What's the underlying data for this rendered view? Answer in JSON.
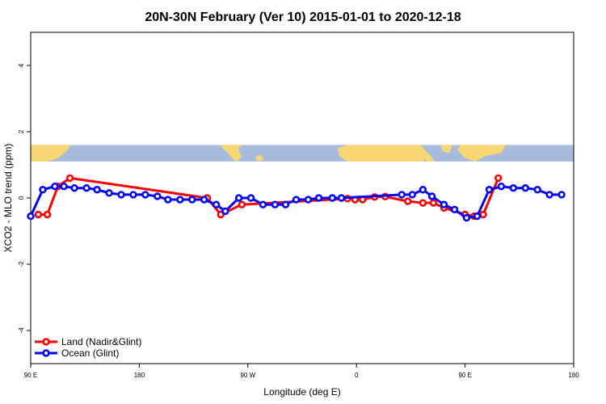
{
  "chart_data": {
    "type": "line",
    "title": "20N-30N February (Ver 10)   2015-01-01 to 2020-12-18",
    "xlabel": "Longitude (deg E)",
    "ylabel": "XCO2 - MLO trend (ppm)",
    "xlim": [
      90,
      450
    ],
    "ylim": [
      -5,
      5
    ],
    "x_ticks": [
      {
        "value": 90,
        "label": "90 E"
      },
      {
        "value": 162,
        "label": "180"
      },
      {
        "value": 234,
        "label": "90 W"
      },
      {
        "value": 306,
        "label": "0"
      },
      {
        "value": 378,
        "label": "90 E"
      },
      {
        "value": 450,
        "label": "180"
      }
    ],
    "y_ticks": [
      -4,
      -2,
      0,
      2,
      4
    ],
    "grid": false,
    "legend_position": "bottom-left",
    "map_strip": {
      "y_range": [
        1.1,
        1.6
      ],
      "ocean_color": "#a7bcdc",
      "land_color": "#f7d673"
    },
    "series": [
      {
        "name": "Land (Nadir&Glint)",
        "color": "#ff0000",
        "x": [
          95,
          101,
          108,
          116,
          207,
          216,
          230,
          300,
          305,
          310,
          318,
          325,
          340,
          350,
          357,
          364,
          378,
          384,
          390,
          400
        ],
        "y": [
          -0.5,
          -0.5,
          0.35,
          0.6,
          0.0,
          -0.5,
          -0.2,
          -0.02,
          -0.05,
          -0.05,
          0.03,
          0.04,
          -0.1,
          -0.15,
          -0.15,
          -0.3,
          -0.5,
          -0.55,
          -0.5,
          0.6
        ]
      },
      {
        "name": "Ocean (Glint)",
        "color": "#0000ff",
        "x": [
          90,
          98,
          106,
          112,
          119,
          127,
          134,
          142,
          150,
          158,
          166,
          174,
          181,
          189,
          197,
          205,
          213,
          219,
          228,
          236,
          244,
          252,
          259,
          266,
          274,
          281,
          290,
          296,
          336,
          343,
          350,
          356,
          364,
          371,
          379,
          386,
          394,
          402,
          410,
          418,
          426,
          434,
          442
        ],
        "y": [
          -0.55,
          0.25,
          0.35,
          0.35,
          0.3,
          0.3,
          0.25,
          0.15,
          0.1,
          0.1,
          0.1,
          0.05,
          -0.05,
          -0.05,
          -0.05,
          -0.05,
          -0.2,
          -0.4,
          0.0,
          0.0,
          -0.2,
          -0.2,
          -0.2,
          -0.05,
          -0.05,
          0.0,
          0.0,
          0.0,
          0.1,
          0.1,
          0.25,
          0.05,
          -0.2,
          -0.35,
          -0.6,
          -0.55,
          0.25,
          0.35,
          0.3,
          0.3,
          0.25,
          0.1,
          0.1
        ]
      }
    ]
  }
}
